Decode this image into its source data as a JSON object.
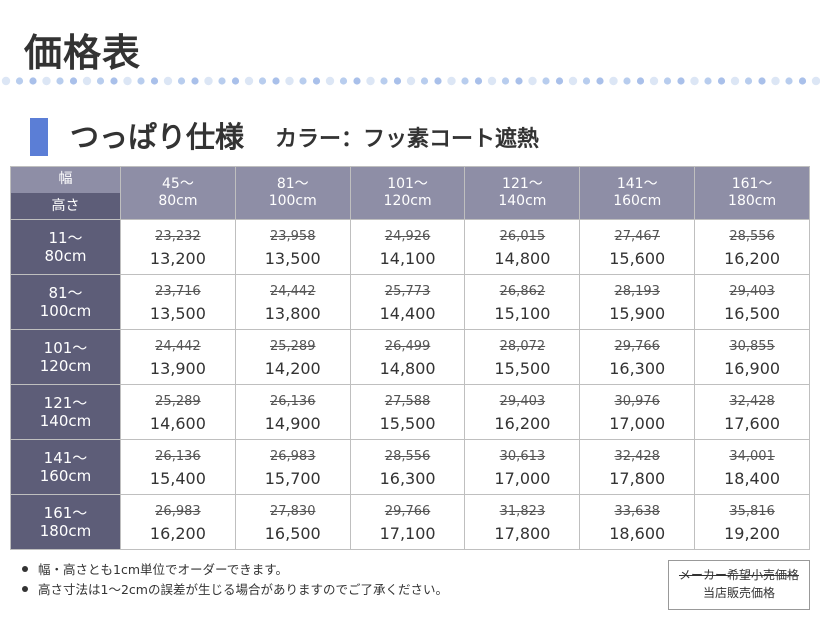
{
  "page_title": "価格表",
  "section": {
    "title": "つっぱり仕様",
    "subtitle": "カラー：フッ素コート遮熱"
  },
  "table": {
    "corner_top": "幅",
    "corner_bottom": "高さ",
    "columns": [
      {
        "line1": "45～",
        "line2": "80cm"
      },
      {
        "line1": "81～",
        "line2": "100cm"
      },
      {
        "line1": "101～",
        "line2": "120cm"
      },
      {
        "line1": "121～",
        "line2": "140cm"
      },
      {
        "line1": "141～",
        "line2": "160cm"
      },
      {
        "line1": "161～",
        "line2": "180cm"
      }
    ],
    "rows": [
      {
        "line1": "11～",
        "line2": "80cm",
        "cells": [
          {
            "orig": "23,232",
            "sale": "13,200"
          },
          {
            "orig": "23,958",
            "sale": "13,500"
          },
          {
            "orig": "24,926",
            "sale": "14,100"
          },
          {
            "orig": "26,015",
            "sale": "14,800"
          },
          {
            "orig": "27,467",
            "sale": "15,600"
          },
          {
            "orig": "28,556",
            "sale": "16,200"
          }
        ]
      },
      {
        "line1": "81～",
        "line2": "100cm",
        "cells": [
          {
            "orig": "23,716",
            "sale": "13,500"
          },
          {
            "orig": "24,442",
            "sale": "13,800"
          },
          {
            "orig": "25,773",
            "sale": "14,400"
          },
          {
            "orig": "26,862",
            "sale": "15,100"
          },
          {
            "orig": "28,193",
            "sale": "15,900"
          },
          {
            "orig": "29,403",
            "sale": "16,500"
          }
        ]
      },
      {
        "line1": "101～",
        "line2": "120cm",
        "cells": [
          {
            "orig": "24,442",
            "sale": "13,900"
          },
          {
            "orig": "25,289",
            "sale": "14,200"
          },
          {
            "orig": "26,499",
            "sale": "14,800"
          },
          {
            "orig": "28,072",
            "sale": "15,500"
          },
          {
            "orig": "29,766",
            "sale": "16,300"
          },
          {
            "orig": "30,855",
            "sale": "16,900"
          }
        ]
      },
      {
        "line1": "121～",
        "line2": "140cm",
        "cells": [
          {
            "orig": "25,289",
            "sale": "14,600"
          },
          {
            "orig": "26,136",
            "sale": "14,900"
          },
          {
            "orig": "27,588",
            "sale": "15,500"
          },
          {
            "orig": "29,403",
            "sale": "16,200"
          },
          {
            "orig": "30,976",
            "sale": "17,000"
          },
          {
            "orig": "32,428",
            "sale": "17,600"
          }
        ]
      },
      {
        "line1": "141～",
        "line2": "160cm",
        "cells": [
          {
            "orig": "26,136",
            "sale": "15,400"
          },
          {
            "orig": "26,983",
            "sale": "15,700"
          },
          {
            "orig": "28,556",
            "sale": "16,300"
          },
          {
            "orig": "30,613",
            "sale": "17,000"
          },
          {
            "orig": "32,428",
            "sale": "17,800"
          },
          {
            "orig": "34,001",
            "sale": "18,400"
          }
        ]
      },
      {
        "line1": "161～",
        "line2": "180cm",
        "cells": [
          {
            "orig": "26,983",
            "sale": "16,200"
          },
          {
            "orig": "27,830",
            "sale": "16,500"
          },
          {
            "orig": "29,766",
            "sale": "17,100"
          },
          {
            "orig": "31,823",
            "sale": "17,800"
          },
          {
            "orig": "33,638",
            "sale": "18,600"
          },
          {
            "orig": "35,816",
            "sale": "19,200"
          }
        ]
      }
    ]
  },
  "notes": [
    "幅・高さとも1cm単位でオーダーできます。",
    "高さ寸法は1～2cmの誤差が生じる場合がありますのでご了承ください。"
  ],
  "legend": {
    "maker_price": "メーカー希望小売価格",
    "store_price": "当店販売価格"
  },
  "colors": {
    "accent_bar": "#5b7ed6",
    "header_light": "#8e8ea6",
    "header_dark": "#5d5d78",
    "dots": [
      "#dce6f5",
      "#b8cdee",
      "#a9c0ea"
    ]
  }
}
